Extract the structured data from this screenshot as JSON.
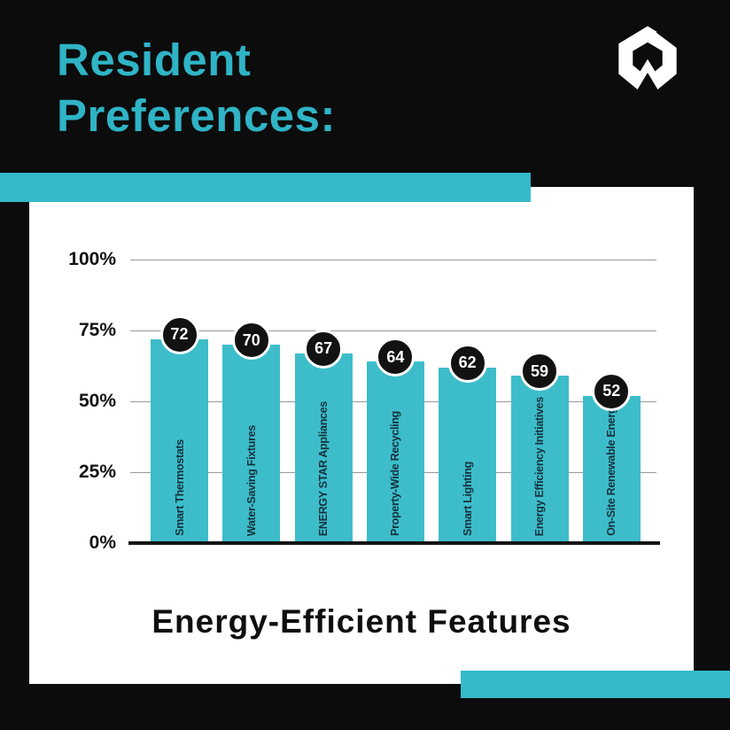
{
  "colors": {
    "background": "#0c0c0c",
    "accent_teal": "#35bac9",
    "heading_teal": "#2fb4c6",
    "bar_fill": "#3dbdca",
    "card": "#ffffff",
    "badge_fill": "#121212",
    "badge_text": "#ffffff",
    "gridline": "#9a9a9a",
    "axis_line": "#151515",
    "bar_label_text": "#16313c",
    "tick_text": "#111111"
  },
  "header": {
    "title_line1": "Resident",
    "title_line2": "Preferences:"
  },
  "icons": {
    "logo": "house-chevron-logo"
  },
  "chart_data": {
    "type": "bar",
    "title": "Energy-Efficient Features",
    "categories": [
      "Smart Thermostats",
      "Water-Saving Fixtures",
      "ENERGY STAR Appliances",
      "Property-Wide Recycling",
      "Smart Lighting",
      "Energy Efficiency Initiatives",
      "On-Site Renewable Energy"
    ],
    "values": [
      72,
      70,
      67,
      64,
      62,
      59,
      52
    ],
    "value_labels": [
      "72",
      "70",
      "67",
      "64",
      "62",
      "59",
      "52"
    ],
    "yticks": [
      {
        "label": "100%",
        "value": 100
      },
      {
        "label": "75%",
        "value": 75
      },
      {
        "label": "50%",
        "value": 50
      },
      {
        "label": "25%",
        "value": 25
      },
      {
        "label": "0%",
        "value": 0
      }
    ],
    "ylim": [
      0,
      100
    ],
    "grid": true,
    "legend": false,
    "value_badge_style": "black-circle-white-text",
    "category_label_rotation": "vertical-bottom-up"
  }
}
